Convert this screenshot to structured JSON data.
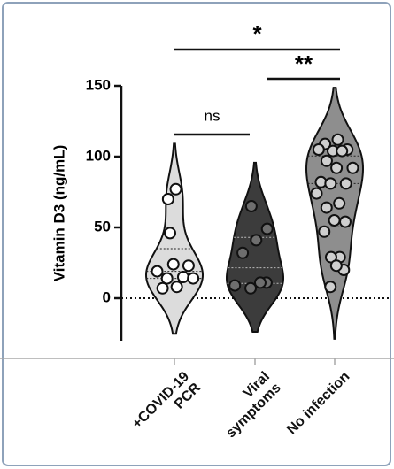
{
  "chart_data": {
    "type": "violin",
    "y_label": "Vitamin D3 (ng/mL)",
    "categories": [
      "+COVID-19\nPCR",
      "Viral\nsymptoms",
      "No infection"
    ],
    "values": [
      [
        70,
        77,
        46,
        23,
        24,
        19,
        15,
        14,
        14,
        8,
        7
      ],
      [
        65,
        49,
        41,
        32,
        11,
        7,
        9,
        11
      ],
      [
        112,
        109,
        105,
        104,
        105,
        104,
        97,
        92,
        92,
        82,
        81,
        81,
        74,
        67,
        64,
        54,
        55,
        47,
        29,
        29,
        20,
        23,
        8
      ]
    ],
    "colors": [
      "#dcdcdc",
      "#3c3c3c",
      "#8e8e8e"
    ],
    "point_colors": [
      "#ffffff",
      "#6e6e6e",
      "#cfcfcf"
    ],
    "ylim": [
      -30,
      150
    ],
    "yticks": [
      0,
      50,
      100,
      150
    ],
    "reference_line": 0,
    "annotations": [
      {
        "text": "ns"
      },
      {
        "text": "**"
      },
      {
        "text": "*"
      }
    ]
  }
}
